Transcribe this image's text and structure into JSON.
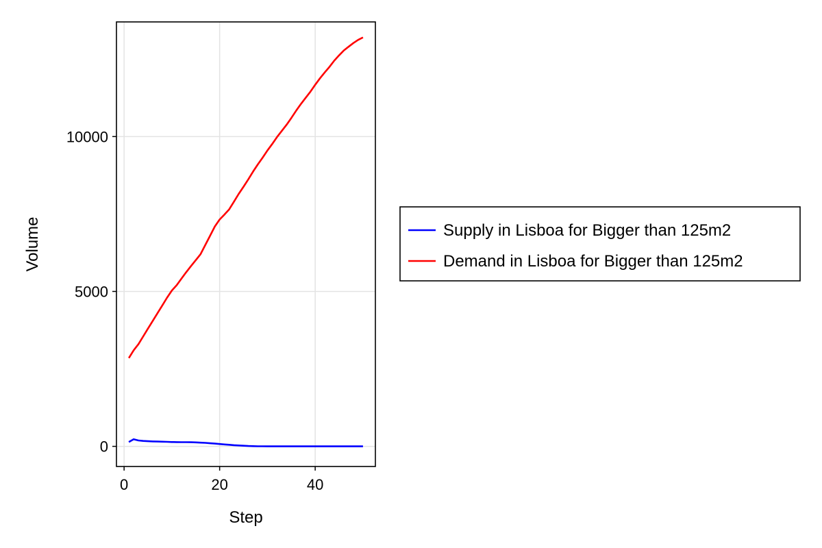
{
  "chart_data": {
    "type": "line",
    "title": "",
    "xlabel": "Step",
    "ylabel": "Volume",
    "xlim": [
      -1.6,
      52.6
    ],
    "ylim": [
      -650,
      13700
    ],
    "xticks": [
      0,
      20,
      40
    ],
    "yticks": [
      0,
      5000,
      10000
    ],
    "grid": true,
    "legend_position": "right",
    "series": [
      {
        "name": "Supply in Lisboa for Bigger than 125m2",
        "color": "#0000ff",
        "x": [
          1,
          2,
          3,
          4,
          5,
          6,
          7,
          8,
          9,
          10,
          11,
          12,
          13,
          14,
          15,
          16,
          17,
          18,
          19,
          20,
          21,
          22,
          23,
          24,
          25,
          26,
          27,
          28,
          29,
          30,
          31,
          32,
          33,
          34,
          35,
          36,
          37,
          38,
          39,
          40,
          41,
          42,
          43,
          44,
          45,
          46,
          47,
          48,
          49,
          50
        ],
        "y": [
          140,
          230,
          190,
          175,
          165,
          160,
          155,
          150,
          145,
          140,
          138,
          136,
          134,
          132,
          128,
          120,
          112,
          100,
          88,
          75,
          62,
          50,
          38,
          28,
          20,
          12,
          6,
          3,
          2,
          1,
          1,
          1,
          1,
          1,
          1,
          1,
          1,
          1,
          1,
          1,
          1,
          1,
          1,
          1,
          1,
          1,
          1,
          1,
          1,
          1
        ]
      },
      {
        "name": "Demand in Lisboa for Bigger than 125m2",
        "color": "#ff0000",
        "x": [
          1,
          2,
          3,
          4,
          5,
          6,
          7,
          8,
          9,
          10,
          11,
          12,
          13,
          14,
          15,
          16,
          17,
          18,
          19,
          20,
          21,
          22,
          23,
          24,
          25,
          26,
          27,
          28,
          29,
          30,
          31,
          32,
          33,
          34,
          35,
          36,
          37,
          38,
          39,
          40,
          41,
          42,
          43,
          44,
          45,
          46,
          47,
          48,
          49,
          50
        ],
        "y": [
          2850,
          3100,
          3300,
          3550,
          3800,
          4050,
          4300,
          4550,
          4800,
          5030,
          5200,
          5410,
          5620,
          5820,
          6010,
          6200,
          6500,
          6800,
          7100,
          7320,
          7480,
          7650,
          7900,
          8150,
          8380,
          8620,
          8870,
          9100,
          9320,
          9550,
          9760,
          9980,
          10180,
          10380,
          10600,
          10830,
          11050,
          11250,
          11450,
          11670,
          11880,
          12070,
          12250,
          12450,
          12620,
          12780,
          12900,
          13020,
          13120,
          13200
        ]
      }
    ]
  }
}
